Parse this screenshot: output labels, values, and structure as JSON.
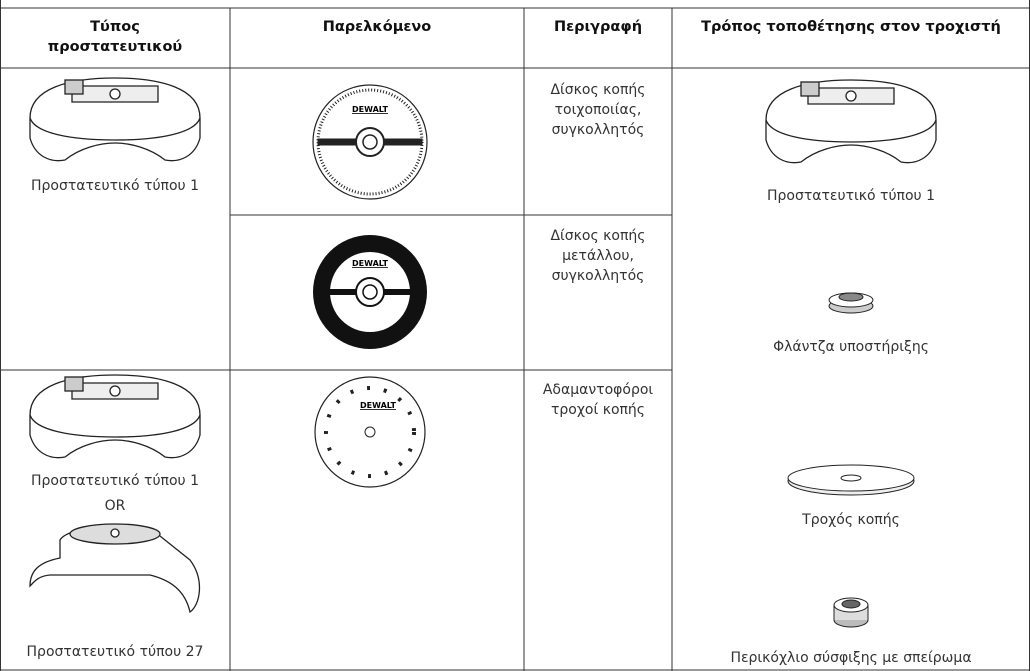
{
  "table": {
    "headers": [
      "Τύπος προστατευτικού",
      "Παρελκόμενο",
      "Περιγραφή",
      "Τρόπος τοποθέτησης στον τροχιστή"
    ],
    "guards": [
      "Προστατευτικό τύπου 1",
      "Προστατευτικό τύπου 1",
      "OR",
      "Προστατευτικό τύπου 27"
    ],
    "brand_labels": [
      "DEWALT",
      "DEWALT",
      "DEWALT"
    ],
    "descriptions": [
      "Δίσκος κοπής τοιχοποιίας, συγκολλητός",
      "Δίσκος κοπής μετάλλου, συγκολλητός",
      "Αδαμαντοφόροι τροχοί κοπής"
    ],
    "mounting": [
      "Προστατευτικό τύπου 1",
      "Φλάντζα υποστήριξης",
      "Τροχός κοπής",
      "Περικόχλιο σύσφιξης με σπείρωμα"
    ]
  }
}
